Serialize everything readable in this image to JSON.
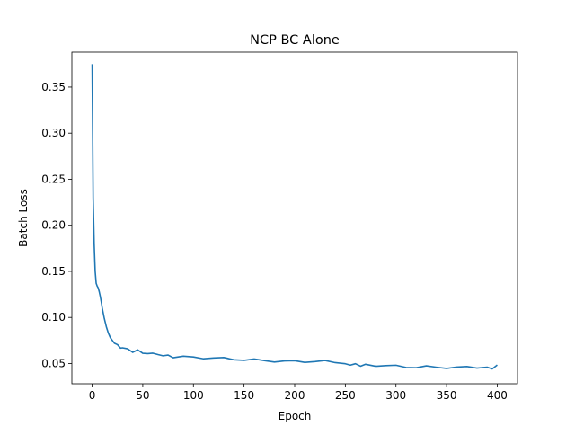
{
  "chart_data": {
    "type": "line",
    "title": "NCP BC Alone",
    "xlabel": "Epoch",
    "ylabel": "Batch Loss",
    "xlim": [
      -20,
      420
    ],
    "ylim": [
      0.028,
      0.388
    ],
    "xticks": [
      0,
      50,
      100,
      150,
      200,
      250,
      300,
      350,
      400
    ],
    "yticks": [
      0.05,
      0.1,
      0.15,
      0.2,
      0.25,
      0.3,
      0.35
    ],
    "ytick_labels": [
      "0.05",
      "0.10",
      "0.15",
      "0.20",
      "0.25",
      "0.30",
      "0.35"
    ],
    "grid": false,
    "line_color": "#1f77b4",
    "series": [
      {
        "x": [
          0,
          1,
          2,
          3,
          4,
          5,
          6,
          7,
          8,
          9,
          10,
          12,
          14,
          16,
          18,
          20,
          22,
          25,
          28,
          30,
          35,
          40,
          45,
          50,
          55,
          60,
          65,
          70,
          75,
          80,
          90,
          100,
          110,
          120,
          130,
          140,
          150,
          160,
          170,
          180,
          190,
          200,
          210,
          220,
          230,
          240,
          250,
          255,
          260,
          265,
          270,
          280,
          290,
          300,
          310,
          320,
          330,
          340,
          350,
          360,
          370,
          380,
          390,
          395,
          400
        ],
        "y": [
          0.375,
          0.23,
          0.18,
          0.15,
          0.137,
          0.134,
          0.132,
          0.128,
          0.123,
          0.117,
          0.11,
          0.099,
          0.09,
          0.083,
          0.078,
          0.075,
          0.073,
          0.071,
          0.068,
          0.067,
          0.065,
          0.064,
          0.063,
          0.062,
          0.061,
          0.0605,
          0.06,
          0.059,
          0.058,
          0.057,
          0.0565,
          0.056,
          0.0555,
          0.055,
          0.0548,
          0.0545,
          0.054,
          0.054,
          0.0538,
          0.0535,
          0.053,
          0.053,
          0.0528,
          0.0525,
          0.052,
          0.051,
          0.05,
          0.049,
          0.048,
          0.049,
          0.048,
          0.0475,
          0.047,
          0.047,
          0.0468,
          0.0465,
          0.047,
          0.0468,
          0.0465,
          0.046,
          0.0462,
          0.046,
          0.0458,
          0.0455,
          0.0465
        ]
      }
    ]
  }
}
